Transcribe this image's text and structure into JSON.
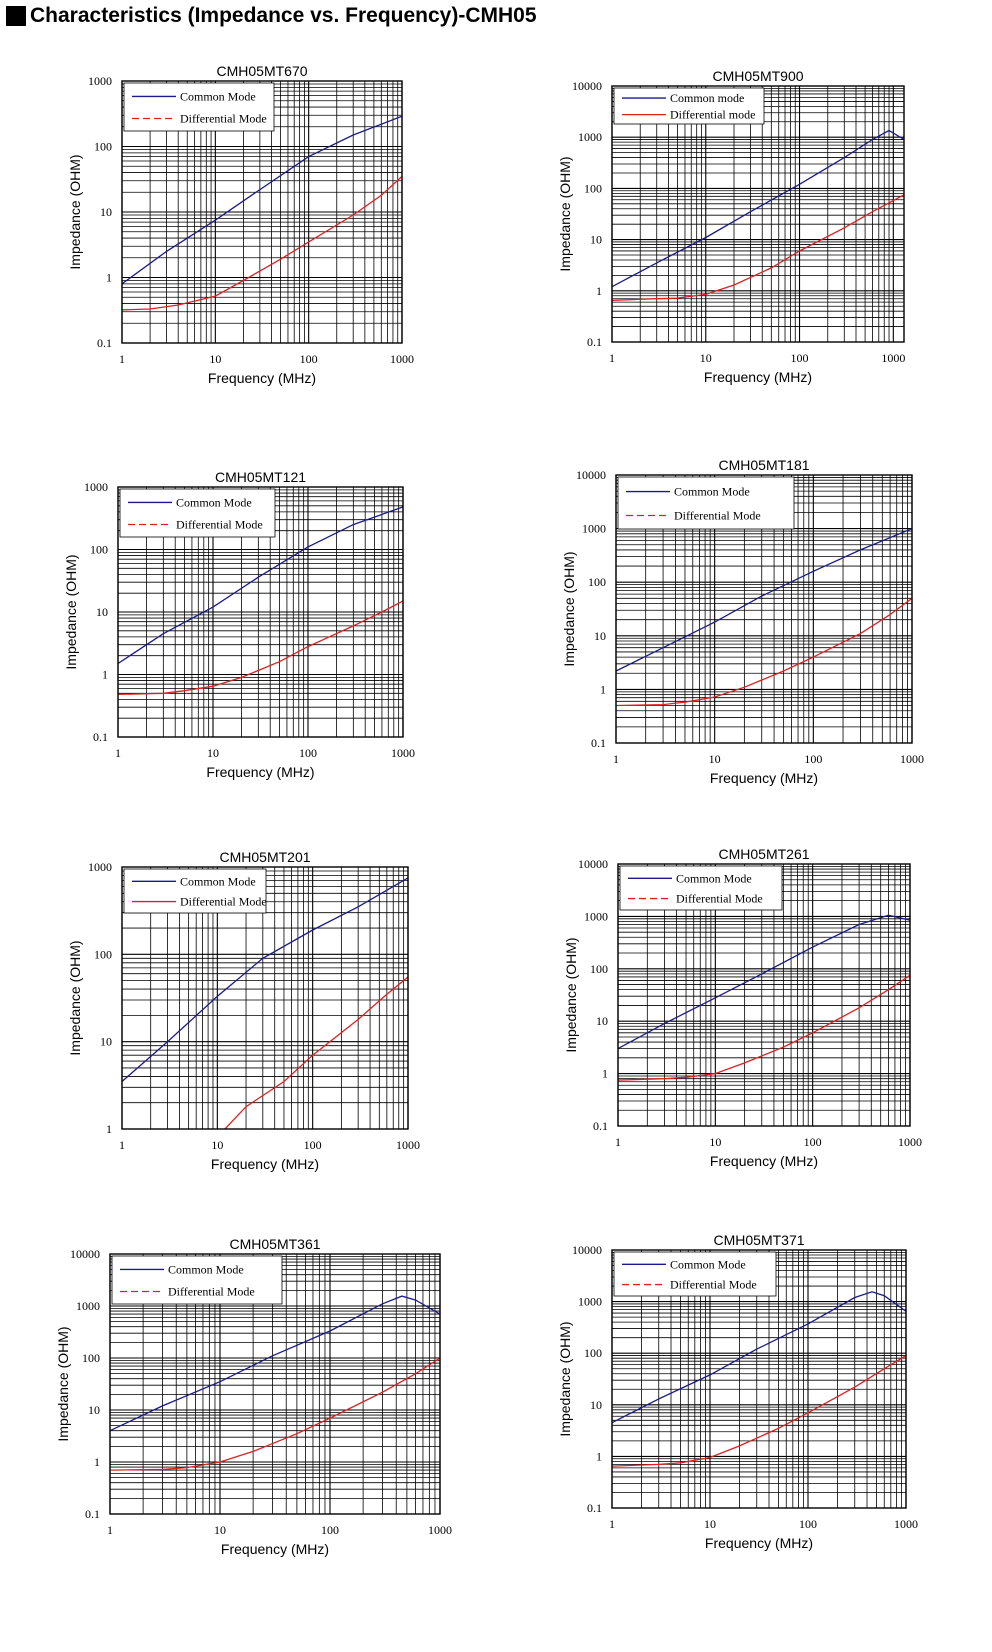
{
  "page": {
    "title": "Characteristics (Impedance vs. Frequency)-CMH05"
  },
  "legend_labels": {
    "common": "Common Mode",
    "differential": "Differential Mode"
  },
  "colors": {
    "common_mode": "#1a1a8c",
    "differential_mode": "#e02020",
    "grid": "#000000"
  },
  "chart_data": [
    {
      "type": "line",
      "title": "CMH05MT670",
      "xlabel": "Frequency (MHz)",
      "ylabel": "Impedance (OHM)",
      "xscale": "log",
      "yscale": "log",
      "xlim": [
        1,
        1000
      ],
      "ylim": [
        0.1,
        1000
      ],
      "xticks": [
        "1",
        "10",
        "100",
        "1000"
      ],
      "yticks": [
        "0.1",
        "1",
        "10",
        "100",
        "1000"
      ],
      "grid": true,
      "legend_position": "top-left",
      "series": [
        {
          "name": "Common Mode",
          "style": "solid",
          "x": [
            1,
            3,
            10,
            30,
            100,
            300,
            1000
          ],
          "y": [
            0.8,
            2.5,
            7.5,
            22,
            70,
            150,
            290
          ]
        },
        {
          "name": "Differential Mode",
          "style": "dashed",
          "x": [
            1,
            2,
            4,
            10,
            20,
            50,
            100,
            300,
            600,
            1000
          ],
          "y": [
            0.32,
            0.33,
            0.38,
            0.52,
            0.9,
            1.9,
            3.5,
            9,
            18,
            35
          ]
        }
      ]
    },
    {
      "type": "line",
      "title": "CMH05MT900",
      "xlabel": "Frequency (MHz)",
      "ylabel": "Impedance (OHM)",
      "xscale": "log",
      "yscale": "log",
      "xlim": [
        1,
        1300
      ],
      "ylim": [
        0.1,
        10000
      ],
      "xticks": [
        "1",
        "10",
        "100",
        "1000"
      ],
      "yticks": [
        "0.1",
        "1",
        "10",
        "100",
        "1000",
        "10000"
      ],
      "grid": true,
      "legend_position": "top-left",
      "legend_labels": [
        "Common mode",
        "Differential mode"
      ],
      "series": [
        {
          "name": "Common mode",
          "style": "solid",
          "x": [
            1,
            3,
            10,
            30,
            100,
            300,
            600,
            900,
            1300
          ],
          "y": [
            1.2,
            3.5,
            11,
            35,
            120,
            400,
            900,
            1350,
            900
          ]
        },
        {
          "name": "Differential mode",
          "style": "solid",
          "x": [
            1,
            3,
            5,
            10,
            20,
            50,
            100,
            300,
            600,
            1300
          ],
          "y": [
            0.65,
            0.7,
            0.72,
            0.85,
            1.3,
            2.8,
            6,
            17,
            35,
            75
          ]
        }
      ]
    },
    {
      "type": "line",
      "title": "CMH05MT121",
      "xlabel": "Frequency (MHz)",
      "ylabel": "Impedance (OHM)",
      "xscale": "log",
      "yscale": "log",
      "xlim": [
        1,
        1000
      ],
      "ylim": [
        0.1,
        1000
      ],
      "xticks": [
        "1",
        "10",
        "100",
        "1000"
      ],
      "yticks": [
        "0.1",
        "1",
        "10",
        "100",
        "1000"
      ],
      "grid": true,
      "legend_position": "top-left",
      "series": [
        {
          "name": "Common Mode",
          "style": "solid",
          "x": [
            1,
            3,
            10,
            30,
            100,
            300,
            1000
          ],
          "y": [
            1.5,
            4.5,
            12,
            36,
            110,
            250,
            480
          ]
        },
        {
          "name": "Differential Mode",
          "style": "dashed",
          "x": [
            1,
            3,
            5,
            10,
            20,
            50,
            100,
            300,
            600,
            1000
          ],
          "y": [
            0.48,
            0.5,
            0.55,
            0.65,
            0.9,
            1.6,
            2.8,
            6,
            10,
            15
          ]
        }
      ]
    },
    {
      "type": "line",
      "title": "CMH05MT181",
      "xlabel": "Frequency (MHz)",
      "ylabel": "Impedance (OHM)",
      "xscale": "log",
      "yscale": "log",
      "xlim": [
        1,
        1000
      ],
      "ylim": [
        0.1,
        10000
      ],
      "xticks": [
        "1",
        "10",
        "100",
        "1000"
      ],
      "yticks": [
        "0.1",
        "1",
        "10",
        "100",
        "1000",
        "10000"
      ],
      "grid": true,
      "legend_position": "top-left",
      "series": [
        {
          "name": "Common Mode",
          "style": "solid",
          "x": [
            1,
            3,
            10,
            30,
            100,
            300,
            1000
          ],
          "y": [
            2.2,
            6,
            18,
            55,
            160,
            400,
            1000
          ]
        },
        {
          "name": "Differential Mode",
          "style": "dashed",
          "x": [
            1,
            3,
            5,
            10,
            20,
            50,
            100,
            300,
            600,
            1000
          ],
          "y": [
            0.5,
            0.52,
            0.58,
            0.72,
            1.1,
            2.2,
            4,
            11,
            25,
            50
          ]
        }
      ]
    },
    {
      "type": "line",
      "title": "CMH05MT201",
      "xlabel": "Frequency (MHz)",
      "ylabel": "Impedance (OHM)",
      "xscale": "log",
      "yscale": "log",
      "xlim": [
        1,
        1000
      ],
      "ylim": [
        1,
        1000
      ],
      "xticks": [
        "1",
        "10",
        "100",
        "1000"
      ],
      "yticks": [
        "1",
        "10",
        "100",
        "1000"
      ],
      "grid": true,
      "legend_position": "top-left",
      "series": [
        {
          "name": "Common Mode",
          "style": "solid",
          "x": [
            1,
            3,
            10,
            30,
            100,
            300,
            1000
          ],
          "y": [
            3.5,
            10,
            33,
            90,
            190,
            350,
            750
          ]
        },
        {
          "name": "Differential Mode",
          "style": "solid",
          "x": [
            12,
            20,
            50,
            100,
            300,
            600,
            1000
          ],
          "y": [
            1,
            1.8,
            3.5,
            7,
            18,
            35,
            55
          ]
        }
      ]
    },
    {
      "type": "line",
      "title": "CMH05MT261",
      "xlabel": "Frequency (MHz)",
      "ylabel": "Impedance (OHM)",
      "xscale": "log",
      "yscale": "log",
      "xlim": [
        1,
        1000
      ],
      "ylim": [
        0.1,
        10000
      ],
      "xticks": [
        "1",
        "10",
        "100",
        "1000"
      ],
      "yticks": [
        "0.1",
        "1",
        "10",
        "100",
        "1000",
        "10000"
      ],
      "grid": true,
      "legend_position": "top-left",
      "series": [
        {
          "name": "Common Mode",
          "style": "solid",
          "x": [
            1,
            3,
            10,
            30,
            100,
            300,
            600,
            1000
          ],
          "y": [
            3,
            9,
            28,
            80,
            260,
            700,
            1050,
            850
          ]
        },
        {
          "name": "Differential Mode",
          "style": "dashed",
          "x": [
            1,
            3,
            5,
            10,
            20,
            50,
            100,
            300,
            600,
            1000
          ],
          "y": [
            0.75,
            0.8,
            0.85,
            1,
            1.6,
            3.2,
            6,
            18,
            40,
            75
          ]
        }
      ]
    },
    {
      "type": "line",
      "title": "CMH05MT361",
      "xlabel": "Frequency (MHz)",
      "ylabel": "Impedance (OHM)",
      "xscale": "log",
      "yscale": "log",
      "xlim": [
        1,
        1000
      ],
      "ylim": [
        0.1,
        10000
      ],
      "xticks": [
        "1",
        "10",
        "100",
        "1000"
      ],
      "yticks": [
        "0.1",
        "1",
        "10",
        "100",
        "1000",
        "10000"
      ],
      "grid": true,
      "legend_position": "top-left",
      "series": [
        {
          "name": "Common Mode",
          "style": "solid",
          "x": [
            1,
            3,
            10,
            30,
            100,
            300,
            450,
            600,
            1000
          ],
          "y": [
            4,
            12,
            35,
            110,
            330,
            1100,
            1550,
            1300,
            700
          ]
        },
        {
          "name": "Differential Mode",
          "style": "dashed",
          "x": [
            1,
            3,
            5,
            10,
            20,
            50,
            100,
            300,
            600,
            1000
          ],
          "y": [
            0.7,
            0.72,
            0.78,
            1,
            1.6,
            3.5,
            7,
            22,
            50,
            100
          ]
        }
      ]
    },
    {
      "type": "line",
      "title": "CMH05MT371",
      "xlabel": "Frequency (MHz)",
      "ylabel": "Impedance (OHM)",
      "xscale": "log",
      "yscale": "log",
      "xlim": [
        1,
        1000
      ],
      "ylim": [
        0.1,
        10000
      ],
      "xticks": [
        "1",
        "10",
        "100",
        "1000"
      ],
      "yticks": [
        "0.1",
        "1",
        "10",
        "100",
        "1000",
        "10000"
      ],
      "grid": true,
      "legend_position": "top-left",
      "series": [
        {
          "name": "Common Mode",
          "style": "solid",
          "x": [
            1,
            3,
            10,
            30,
            100,
            300,
            450,
            600,
            1000
          ],
          "y": [
            4.5,
            13,
            38,
            120,
            370,
            1200,
            1550,
            1300,
            650
          ]
        },
        {
          "name": "Differential Mode",
          "style": "dashed",
          "x": [
            1,
            3,
            5,
            10,
            20,
            50,
            100,
            300,
            600,
            1000
          ],
          "y": [
            0.65,
            0.7,
            0.75,
            0.95,
            1.6,
            3.5,
            7,
            22,
            50,
            90
          ]
        }
      ]
    }
  ]
}
